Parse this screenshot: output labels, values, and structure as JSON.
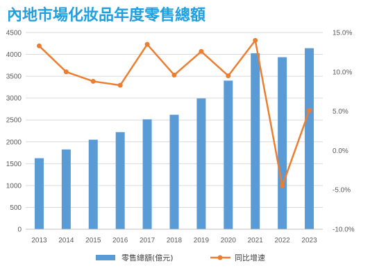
{
  "chart_data": {
    "title": "內地市場化妝品年度零售總額",
    "type": "bar",
    "categories": [
      "2013",
      "2014",
      "2015",
      "2016",
      "2017",
      "2018",
      "2019",
      "2020",
      "2021",
      "2022",
      "2023"
    ],
    "series": [
      {
        "name": "零售總額(億元)",
        "type": "bar",
        "axis": "left",
        "color": "#5B9BD5",
        "values": [
          1625,
          1825,
          2049,
          2222,
          2514,
          2619,
          2992,
          3400,
          4026,
          3936,
          4142
        ]
      },
      {
        "name": "同比增速",
        "type": "line",
        "axis": "right",
        "color": "#ED7D31",
        "values": [
          13.3,
          10.0,
          8.8,
          8.3,
          13.5,
          9.6,
          12.6,
          9.5,
          14.0,
          -4.5,
          5.1
        ]
      }
    ],
    "y_left": {
      "min": 0,
      "max": 4500,
      "step": 500
    },
    "y_right": {
      "min": -10,
      "max": 15,
      "step": 5
    },
    "left_ticks": [
      "0",
      "500",
      "1000",
      "1500",
      "2000",
      "2500",
      "3000",
      "3500",
      "4000",
      "4500"
    ],
    "right_ticks": [
      "-10.0%",
      "-5.0%",
      "0.0%",
      "5.0%",
      "10.0%",
      "15.0%"
    ],
    "grid": true,
    "legend_position": "bottom"
  }
}
